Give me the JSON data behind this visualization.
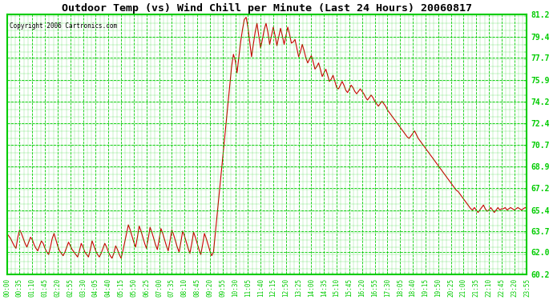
{
  "title": "Outdoor Temp (vs) Wind Chill per Minute (Last 24 Hours) 20060817",
  "copyright": "Copyright 2006 Cartronics.com",
  "bg_color": "#ffffff",
  "line_color": "#cc0000",
  "grid_color": "#00cc00",
  "text_color": "#000000",
  "ylabel_color": "#00aa00",
  "ymin": 60.2,
  "ymax": 81.2,
  "yticks": [
    60.2,
    62.0,
    63.7,
    65.4,
    67.2,
    68.9,
    70.7,
    72.4,
    74.2,
    75.9,
    77.7,
    79.4,
    81.2
  ],
  "xtick_labels": [
    "00:00",
    "00:35",
    "01:10",
    "01:45",
    "02:20",
    "02:55",
    "03:30",
    "04:05",
    "04:40",
    "05:15",
    "05:50",
    "06:25",
    "07:00",
    "07:35",
    "08:10",
    "08:45",
    "09:20",
    "09:55",
    "10:30",
    "11:05",
    "11:40",
    "12:15",
    "12:50",
    "13:25",
    "14:00",
    "14:35",
    "15:10",
    "15:45",
    "16:20",
    "16:55",
    "17:30",
    "18:05",
    "18:40",
    "19:15",
    "19:50",
    "20:25",
    "21:00",
    "21:35",
    "22:10",
    "22:45",
    "23:20",
    "23:55"
  ],
  "data_curve": [
    63.5,
    63.3,
    63.1,
    62.8,
    62.5,
    62.3,
    63.2,
    63.8,
    63.5,
    63.1,
    62.7,
    62.4,
    62.8,
    63.2,
    63.0,
    62.6,
    62.3,
    62.1,
    62.5,
    62.9,
    62.7,
    62.3,
    62.0,
    61.8,
    62.4,
    63.1,
    63.5,
    63.0,
    62.5,
    62.1,
    61.9,
    61.7,
    62.0,
    62.4,
    62.8,
    62.5,
    62.2,
    62.0,
    61.8,
    61.6,
    62.1,
    62.7,
    62.4,
    62.0,
    61.8,
    61.6,
    62.2,
    62.9,
    62.5,
    62.1,
    61.8,
    61.6,
    61.9,
    62.3,
    62.7,
    62.4,
    62.0,
    61.7,
    61.5,
    61.9,
    62.5,
    62.2,
    61.8,
    61.5,
    62.1,
    62.8,
    63.5,
    64.2,
    63.8,
    63.3,
    62.8,
    62.4,
    63.2,
    64.1,
    63.7,
    63.2,
    62.7,
    62.3,
    63.1,
    64.0,
    63.6,
    63.1,
    62.6,
    62.2,
    63.0,
    63.9,
    63.5,
    63.0,
    62.5,
    62.1,
    62.9,
    63.8,
    63.4,
    62.9,
    62.4,
    62.0,
    62.8,
    63.7,
    63.3,
    62.8,
    62.3,
    61.9,
    62.7,
    63.6,
    63.2,
    62.7,
    62.2,
    61.8,
    62.6,
    63.5,
    63.1,
    62.6,
    62.1,
    61.7,
    62.0,
    63.5,
    65.0,
    66.5,
    68.0,
    69.5,
    71.0,
    72.5,
    74.0,
    75.5,
    77.0,
    78.0,
    77.5,
    76.5,
    77.8,
    79.0,
    80.0,
    80.8,
    81.0,
    80.2,
    79.0,
    77.8,
    78.8,
    79.8,
    80.5,
    79.5,
    78.5,
    79.2,
    80.0,
    80.5,
    79.8,
    78.8,
    79.5,
    80.2,
    79.5,
    78.7,
    79.4,
    80.1,
    79.5,
    78.8,
    79.5,
    80.2,
    79.6,
    78.9,
    79.0,
    79.2,
    78.5,
    77.8,
    78.2,
    78.8,
    78.3,
    77.7,
    77.3,
    77.6,
    77.9,
    77.4,
    76.8,
    77.0,
    77.3,
    76.8,
    76.2,
    76.5,
    76.8,
    76.3,
    75.8,
    76.0,
    76.3,
    75.8,
    75.3,
    75.2,
    75.5,
    75.8,
    75.5,
    75.1,
    74.9,
    75.2,
    75.5,
    75.3,
    75.0,
    74.8,
    75.0,
    75.2,
    75.0,
    74.8,
    74.5,
    74.3,
    74.5,
    74.7,
    74.5,
    74.2,
    74.0,
    73.8,
    74.0,
    74.2,
    74.0,
    73.8,
    73.5,
    73.3,
    73.1,
    72.9,
    72.7,
    72.5,
    72.3,
    72.1,
    71.9,
    71.7,
    71.5,
    71.3,
    71.2,
    71.4,
    71.6,
    71.8,
    71.5,
    71.2,
    71.0,
    70.8,
    70.6,
    70.4,
    70.2,
    70.0,
    69.8,
    69.6,
    69.4,
    69.2,
    69.0,
    68.8,
    68.6,
    68.4,
    68.2,
    68.0,
    67.8,
    67.6,
    67.4,
    67.2,
    67.0,
    66.9,
    66.7,
    66.5,
    66.3,
    66.1,
    65.9,
    65.7,
    65.5,
    65.4,
    65.6,
    65.4,
    65.2,
    65.4,
    65.6,
    65.8,
    65.5,
    65.3,
    65.4,
    65.6,
    65.4,
    65.2,
    65.4,
    65.6,
    65.4,
    65.5,
    65.5,
    65.6,
    65.4,
    65.5,
    65.6,
    65.5,
    65.4,
    65.5,
    65.6,
    65.5,
    65.4,
    65.5,
    65.6,
    65.5
  ]
}
